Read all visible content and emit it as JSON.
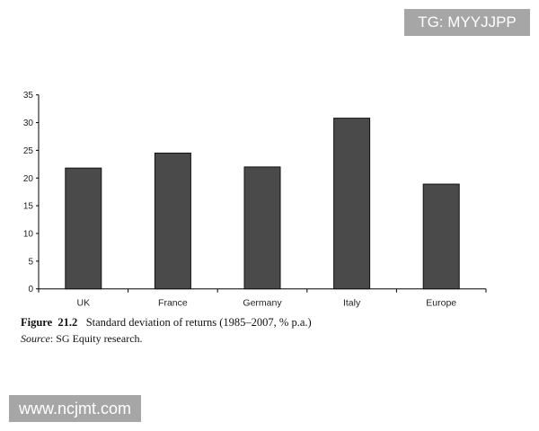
{
  "chart_data": {
    "type": "bar",
    "categories": [
      "UK",
      "France",
      "Germany",
      "Italy",
      "Europe"
    ],
    "values": [
      21.8,
      24.5,
      22.0,
      30.8,
      18.9
    ],
    "title": "Standard deviation of returns (1985–2007, % p.a.)",
    "figure_label": "Figure  21.2",
    "source_label": "Source",
    "source_text": ": SG Equity research.",
    "xlabel": "",
    "ylabel": "",
    "ylim": [
      0,
      35
    ],
    "yticks": [
      0,
      5,
      10,
      15,
      20,
      25,
      30,
      35
    ],
    "grid": false,
    "bar_color": "#4a4a4a"
  },
  "watermarks": {
    "top": "TG: MYYJJPP",
    "bottom": "www.ncjmt.com"
  }
}
